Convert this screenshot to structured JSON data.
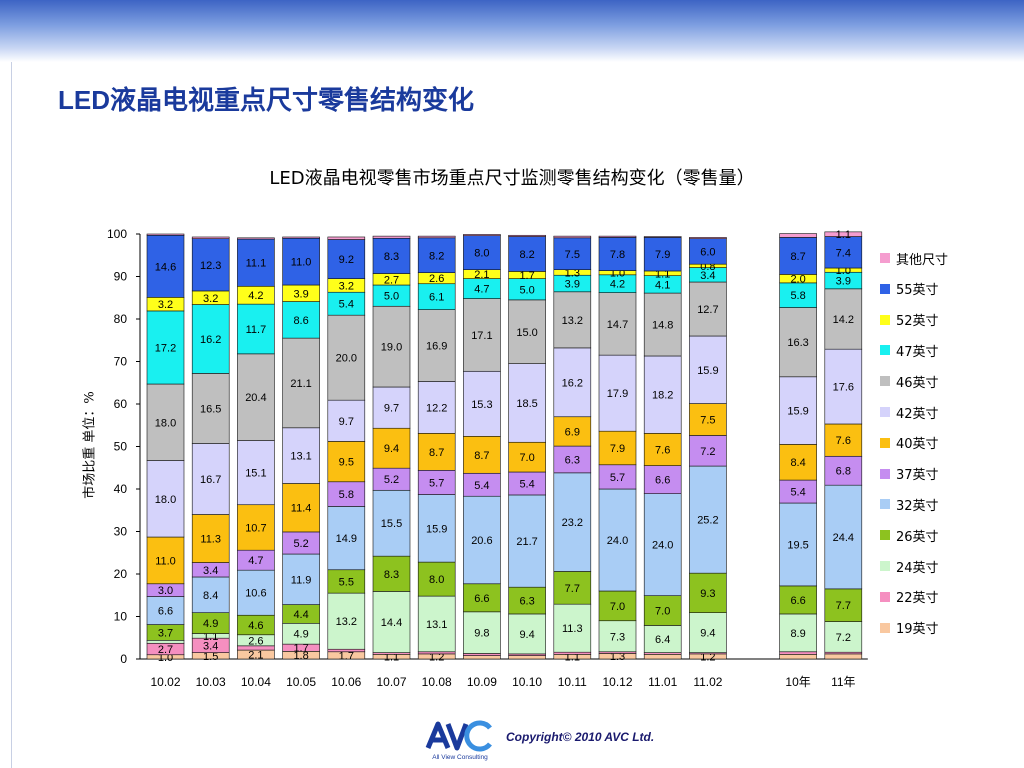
{
  "page": {
    "title": "LED液晶电视重点尺寸零售结构变化"
  },
  "footer": {
    "copyright": "Copyright© 2010 AVC Ltd.",
    "logo_text": "AVC",
    "logo_subtitle": "All View Consulting"
  },
  "chart_data": {
    "type": "bar",
    "stacked": true,
    "title": "LED液晶电视零售市场重点尺寸监测零售结构变化（零售量）",
    "ylabel": "市场比重 单位：%",
    "ylim": [
      0,
      100
    ],
    "yticks": [
      0,
      10,
      20,
      30,
      40,
      50,
      60,
      70,
      80,
      90,
      100
    ],
    "grid": false,
    "legend_position": "right",
    "categories": [
      "10.02",
      "10.03",
      "10.04",
      "10.05",
      "10.06",
      "10.07",
      "10.08",
      "10.09",
      "10.10",
      "10.11",
      "10.12",
      "11.01",
      "11.02",
      "10年",
      "11年"
    ],
    "group_gap_before_index": 13,
    "series": [
      {
        "name": "19英寸",
        "color": "#f9c8a0",
        "values": [
          1.0,
          1.5,
          2.1,
          1.8,
          1.7,
          1.1,
          1.2,
          0.8,
          0.8,
          1.1,
          1.3,
          1.1,
          1.2,
          1.1,
          1.2
        ],
        "labels": [
          "1.0",
          "1.5",
          "2.1",
          "1.8",
          "1.7",
          "1.1",
          "1.2",
          "",
          "",
          "1.1",
          "1.3",
          "",
          "1.2",
          "",
          ""
        ]
      },
      {
        "name": "22英寸",
        "color": "#f58fc0",
        "values": [
          2.7,
          3.4,
          1.0,
          1.7,
          0.6,
          0.4,
          0.5,
          0.5,
          0.4,
          0.5,
          0.4,
          0.4,
          0.3,
          0.6,
          0.4
        ],
        "labels": [
          "2.7",
          "3.4",
          "",
          "1.7",
          "",
          "",
          "",
          "",
          "",
          "",
          "",
          "",
          "",
          "",
          ""
        ]
      },
      {
        "name": "24英寸",
        "color": "#ccf5cc",
        "values": [
          0.7,
          1.1,
          2.6,
          4.9,
          13.2,
          14.4,
          13.1,
          9.8,
          9.4,
          11.3,
          7.3,
          6.4,
          9.4,
          8.9,
          7.2
        ],
        "labels": [
          "",
          "1.1",
          "2.6",
          "4.9",
          "13.2",
          "14.4",
          "13.1",
          "9.8",
          "9.4",
          "11.3",
          "7.3",
          "6.4",
          "9.4",
          "8.9",
          "7.2"
        ]
      },
      {
        "name": "26英寸",
        "color": "#8dc21f",
        "values": [
          3.7,
          4.9,
          4.6,
          4.4,
          5.5,
          8.3,
          8.0,
          6.6,
          6.3,
          7.7,
          7.0,
          7.0,
          9.3,
          6.6,
          7.7
        ],
        "labels": [
          "3.7",
          "4.9",
          "4.6",
          "4.4",
          "5.5",
          "8.3",
          "8.0",
          "6.6",
          "6.3",
          "7.7",
          "7.0",
          "7.0",
          "9.3",
          "6.6",
          "7.7"
        ]
      },
      {
        "name": "32英寸",
        "color": "#a9cdf5",
        "values": [
          6.6,
          8.4,
          10.6,
          11.9,
          14.9,
          15.5,
          15.9,
          20.6,
          21.7,
          23.2,
          24.0,
          24.0,
          25.2,
          19.5,
          24.4
        ],
        "labels": [
          "6.6",
          "8.4",
          "10.6",
          "11.9",
          "14.9",
          "15.5",
          "15.9",
          "20.6",
          "21.7",
          "23.2",
          "24.0",
          "24.0",
          "25.2",
          "19.5",
          "24.4"
        ]
      },
      {
        "name": "37英寸",
        "color": "#c58df0",
        "values": [
          3.0,
          3.4,
          4.7,
          5.2,
          5.8,
          5.2,
          5.7,
          5.4,
          5.4,
          6.3,
          5.7,
          6.6,
          7.2,
          5.4,
          6.8
        ],
        "labels": [
          "3.0",
          "3.4",
          "4.7",
          "5.2",
          "5.8",
          "5.2",
          "5.7",
          "5.4",
          "5.4",
          "6.3",
          "5.7",
          "6.6",
          "7.2",
          "5.4",
          "6.8"
        ]
      },
      {
        "name": "40英寸",
        "color": "#fbbf11",
        "values": [
          11.0,
          11.3,
          10.7,
          11.4,
          9.5,
          9.4,
          8.7,
          8.7,
          7.0,
          6.9,
          7.9,
          7.6,
          7.5,
          8.4,
          7.6
        ],
        "labels": [
          "11.0",
          "11.3",
          "10.7",
          "11.4",
          "9.5",
          "9.4",
          "8.7",
          "8.7",
          "7.0",
          "6.9",
          "7.9",
          "7.6",
          "7.5",
          "8.4",
          "7.6"
        ]
      },
      {
        "name": "42英寸",
        "color": "#d5d3fb",
        "values": [
          18.0,
          16.7,
          15.1,
          13.1,
          9.7,
          9.7,
          12.2,
          15.3,
          18.5,
          16.2,
          17.9,
          18.2,
          15.9,
          15.9,
          17.6
        ],
        "labels": [
          "18.0",
          "16.7",
          "15.1",
          "13.1",
          "9.7",
          "9.7",
          "12.2",
          "15.3",
          "18.5",
          "16.2",
          "17.9",
          "18.2",
          "15.9",
          "15.9",
          "17.6"
        ]
      },
      {
        "name": "46英寸",
        "color": "#bfbfbf",
        "values": [
          18.0,
          16.5,
          20.4,
          21.1,
          20.0,
          19.0,
          16.9,
          17.1,
          15.0,
          13.2,
          14.7,
          14.8,
          12.7,
          16.3,
          14.2
        ],
        "labels": [
          "18.0",
          "16.5",
          "20.4",
          "21.1",
          "20.0",
          "19.0",
          "16.9",
          "17.1",
          "15.0",
          "13.2",
          "14.7",
          "14.8",
          "12.7",
          "16.3",
          "14.2"
        ]
      },
      {
        "name": "47英寸",
        "color": "#19f0f0",
        "values": [
          17.2,
          16.2,
          11.7,
          8.6,
          5.4,
          5.0,
          6.1,
          4.7,
          5.0,
          3.9,
          4.2,
          4.1,
          3.4,
          5.8,
          3.9
        ],
        "labels": [
          "17.2",
          "16.2",
          "11.7",
          "8.6",
          "5.4",
          "5.0",
          "6.1",
          "4.7",
          "5.0",
          "3.9",
          "4.2",
          "4.1",
          "3.4",
          "5.8",
          "3.9"
        ]
      },
      {
        "name": "52英寸",
        "color": "#ffff1a",
        "values": [
          3.2,
          3.2,
          4.2,
          3.9,
          3.2,
          2.7,
          2.6,
          2.1,
          1.7,
          1.3,
          1.0,
          1.1,
          0.8,
          2.0,
          1.0
        ],
        "labels": [
          "3.2",
          "3.2",
          "4.2",
          "3.9",
          "3.2",
          "2.7",
          "2.6",
          "2.1",
          "1.7",
          "1.3",
          "1.0",
          "1.1",
          "0.8",
          "2.0",
          "1.0"
        ]
      },
      {
        "name": "55英寸",
        "color": "#2f62e6",
        "values": [
          14.6,
          12.3,
          11.1,
          11.0,
          9.2,
          8.3,
          8.2,
          8.0,
          8.2,
          7.5,
          7.8,
          7.9,
          6.0,
          8.7,
          7.4
        ],
        "labels": [
          "14.6",
          "12.3",
          "11.1",
          "11.0",
          "9.2",
          "8.3",
          "8.2",
          "8.0",
          "8.2",
          "7.5",
          "7.8",
          "7.9",
          "6.0",
          "8.7",
          "7.4"
        ]
      },
      {
        "name": "其他尺寸",
        "color": "#f59dcf",
        "values": [
          0.3,
          0.4,
          0.3,
          0.3,
          0.6,
          0.5,
          0.4,
          0.3,
          0.3,
          0.4,
          0.3,
          0.2,
          0.3,
          0.9,
          1.1
        ],
        "labels": [
          "",
          "",
          "",
          "",
          "",
          "",
          "",
          "",
          "",
          "",
          "",
          "",
          "",
          "",
          "1.1"
        ]
      }
    ]
  }
}
